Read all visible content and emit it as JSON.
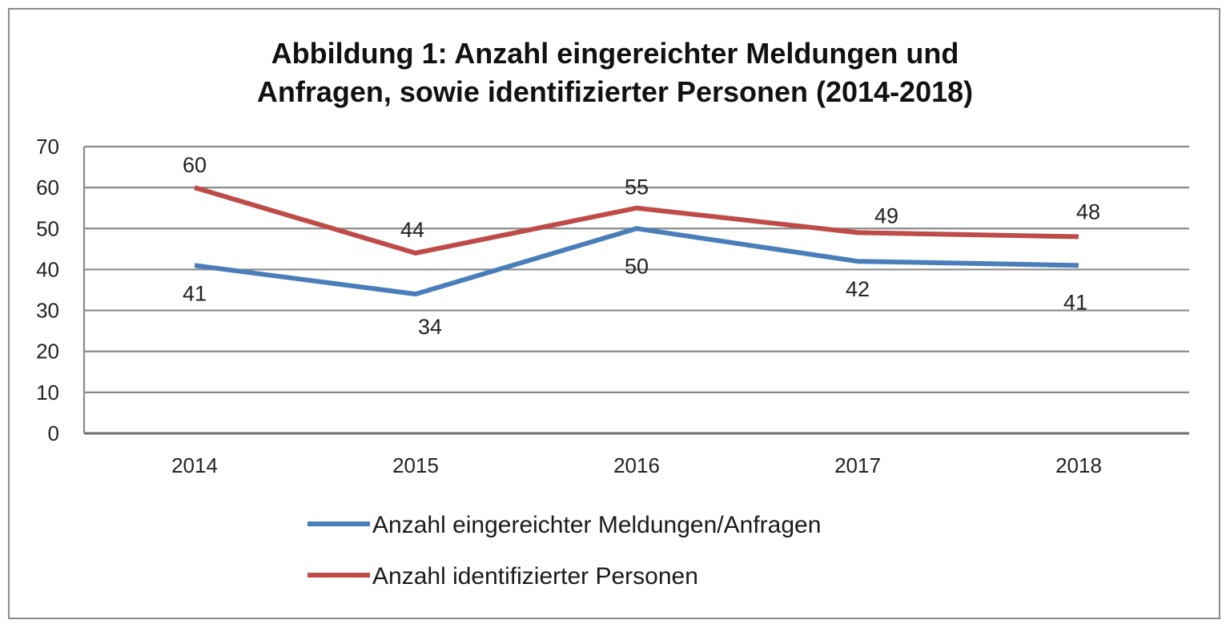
{
  "chart_data": {
    "type": "line",
    "title": [
      "Abbildung 1: Anzahl eingereichter Meldungen und",
      "Anfragen, sowie identifizierter Personen (2014-2018)"
    ],
    "xlabel": "",
    "ylabel": "",
    "categories": [
      "2014",
      "2015",
      "2016",
      "2017",
      "2018"
    ],
    "ylim": [
      0,
      70
    ],
    "yticks": [
      0,
      10,
      20,
      30,
      40,
      50,
      60,
      70
    ],
    "grid": true,
    "legend_position": "bottom",
    "series": [
      {
        "name": "Anzahl eingereichter Meldungen/Anfragen",
        "color": "#4A7EBB",
        "values": [
          41,
          34,
          50,
          42,
          41
        ],
        "label_position": "below"
      },
      {
        "name": "Anzahl identifizierter Personen",
        "color": "#BE4B48",
        "values": [
          60,
          44,
          55,
          49,
          48
        ],
        "label_position": "above"
      }
    ]
  }
}
